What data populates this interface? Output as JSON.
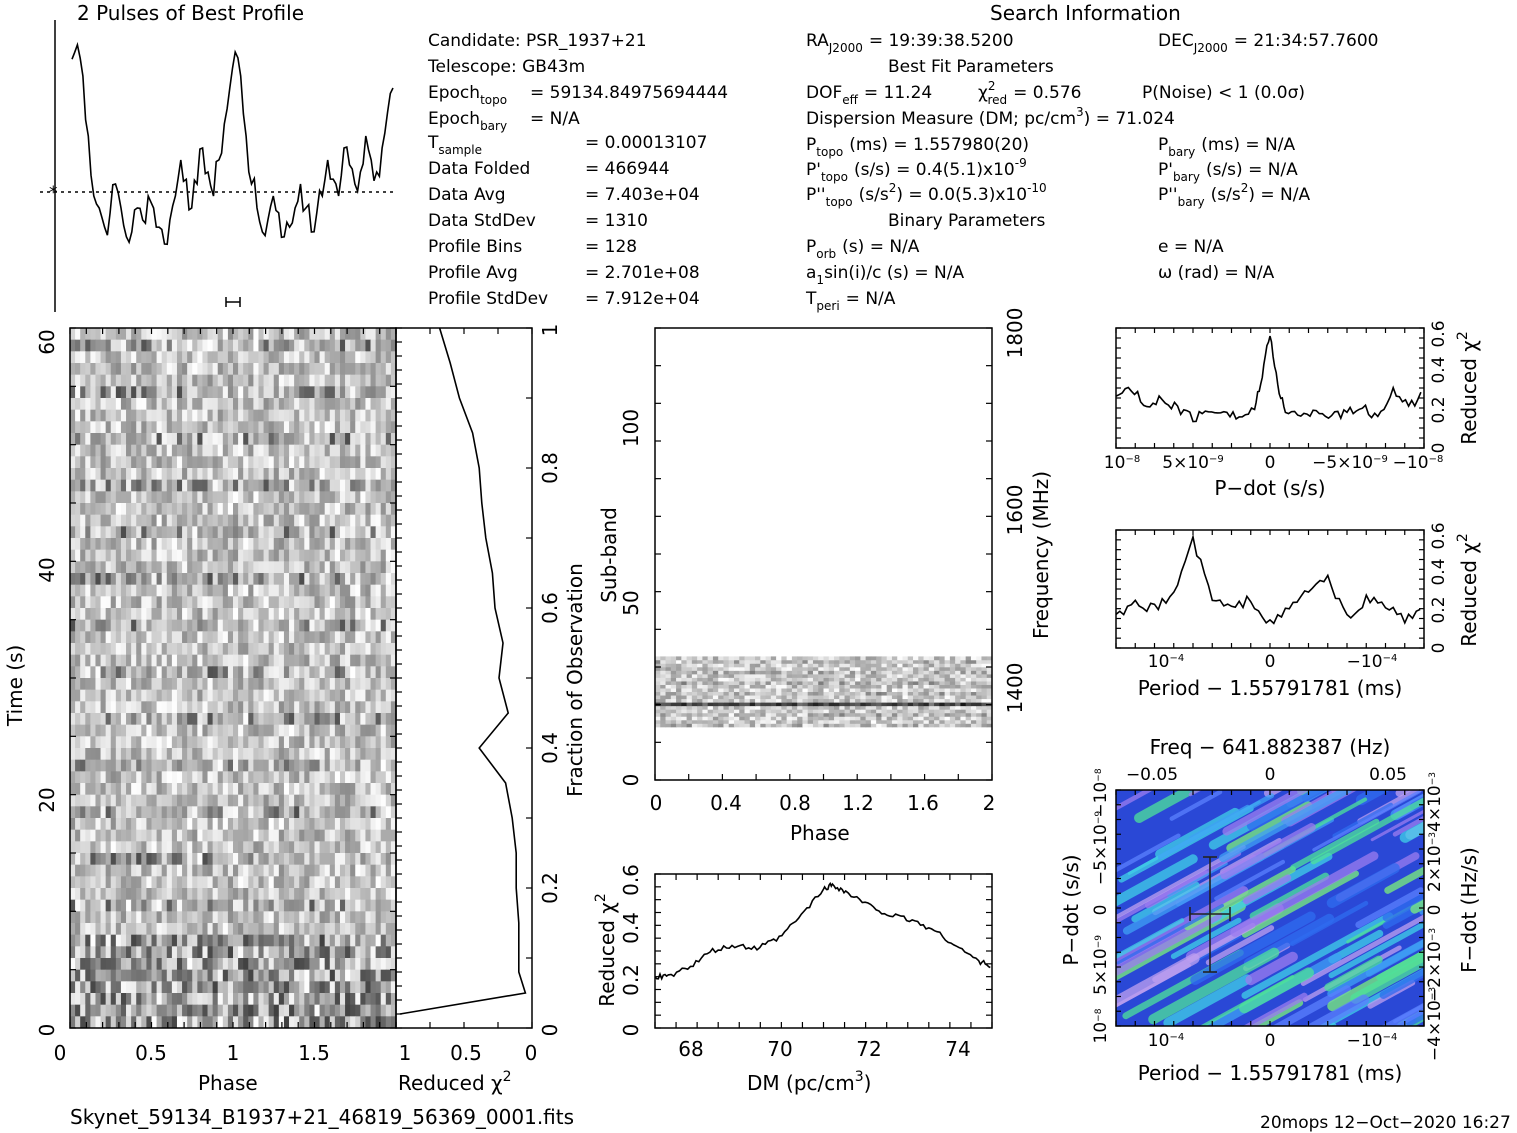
{
  "profile": {
    "title": "2 Pulses of Best Profile"
  },
  "search_info": {
    "heading": "Search Information",
    "candidate": "Candidate:  PSR_1937+21",
    "telescope": "Telescope:  GB43m",
    "epoch_topo": "Epoch",
    "epoch_topo_sub": "topo",
    "epoch_topo_val": "= 59134.84975694444",
    "epoch_bary": "Epoch",
    "epoch_bary_sub": "bary",
    "epoch_bary_val": "= N/A",
    "tsample": "T",
    "tsample_sub": "sample",
    "tsample_val": "=   0.00013107",
    "data_folded": "Data Folded",
    "data_folded_val": "=   466944",
    "data_avg": "Data Avg",
    "data_avg_val": "=   7.403e+04",
    "data_std": "Data StdDev",
    "data_std_val": "=   1310",
    "profile_bins": "Profile Bins",
    "profile_bins_val": "=   128",
    "profile_avg": "Profile Avg",
    "profile_avg_val": "=   2.701e+08",
    "profile_std": "Profile StdDev",
    "profile_std_val": "=   7.912e+04",
    "ra": "RA",
    "ra_sub": "J2000",
    "ra_val": "= 19:39:38.5200",
    "dec": "DEC",
    "dec_sub": "J2000",
    "dec_val": "= 21:34:57.7600",
    "best_fit_heading": "Best Fit Parameters",
    "dof": "DOF",
    "dof_sub": "eff",
    "dof_val": "= 11.24",
    "chi2": "χ",
    "chi2_sup": "2",
    "chi2_sub": "red",
    "chi2_val": "= 0.576",
    "pnoise": "P(Noise) < 1   (0.0σ)",
    "dm": "Dispersion Measure (DM; pc/cm",
    "dm_sup": "3",
    "dm_val": ") = 71.024",
    "ptopo": "P",
    "ptopo_sub": "topo",
    "ptopo_val": "(ms) =  1.557980(20)",
    "pdtopo": "P'",
    "pdtopo_sub": "topo",
    "pdtopo_val": "(s/s) =  0.4(5.1)x10",
    "pdtopo_exp": "-9",
    "pddtopo": "P''",
    "pddtopo_sub": "topo",
    "pddtopo_val": "(s/s",
    "pddtopo_sup": "2",
    "pddtopo_val2": ") = 0.0(5.3)x10",
    "pddtopo_exp": "-10",
    "pbary": "P",
    "pbary_sub": "bary",
    "pbary_val": "(ms) = N/A",
    "pdbary": "P'",
    "pdbary_sub": "bary",
    "pdbary_val": "(s/s) = N/A",
    "pddbary": "P''",
    "pddbary_sub": "bary",
    "pddbary_val": "(s/s",
    "pddbary_sup": "2",
    "pddbary_val2": ") = N/A",
    "binary_heading": "Binary Parameters",
    "porb": "P",
    "porb_sub": "orb",
    "porb_val": "(s) = N/A",
    "a1": "a",
    "a1_sub": "1",
    "a1_val": "sin(i)/c (s) = N/A",
    "tperi": "T",
    "tperi_sub": "peri",
    "tperi_val": "= N/A",
    "ecc": "e = N/A",
    "omega": "ω (rad) = N/A"
  },
  "time_phase": {
    "ylabel": "Time (s)",
    "xlabel": "Phase",
    "yticks": [
      "0",
      "20",
      "40",
      "60"
    ],
    "xticks": [
      "0",
      "0.5",
      "1",
      "1.5"
    ]
  },
  "chi_vs_time": {
    "xlabel": "Reduced χ",
    "xlabel_sup": "2",
    "xticks": [
      "1",
      "0.5",
      "0"
    ],
    "ylabel": "Fraction of Observation",
    "yticks": [
      "0",
      "0.2",
      "0.4",
      "0.6",
      "0.8",
      "1"
    ]
  },
  "subband": {
    "ylabel": "Sub-band",
    "xlabel": "Phase",
    "yticks": [
      "0",
      "50",
      "100"
    ],
    "xticks": [
      "0",
      "0.4",
      "0.8",
      "1.2",
      "1.6",
      "2"
    ],
    "y2label": "Frequency (MHz)",
    "y2ticks": [
      "1400",
      "1600",
      "1800"
    ]
  },
  "dm_plot": {
    "ylabel": "Reduced χ",
    "ylabel_sup": "2",
    "xlabel": "DM (pc/cm",
    "xlabel_sup": "3",
    "xlabel_end": ")",
    "xticks": [
      "68",
      "70",
      "72",
      "74"
    ],
    "yticks": [
      "0",
      "0.2",
      "0.4",
      "0.6"
    ]
  },
  "pdot_plot": {
    "xlabel": "P−dot (s/s)",
    "ylabel": "Reduced χ",
    "ylabel_sup": "2",
    "xticks": [
      "10",
      "5×10",
      "0",
      "−5×10",
      "−10"
    ],
    "xticks_exp": [
      "−8",
      "−9",
      "",
      "−9",
      "−8"
    ],
    "yticks": [
      "0",
      "0.2",
      "0.4",
      "0.6"
    ]
  },
  "period_plot": {
    "xlabel": "Period − 1.55791781 (ms)",
    "ylabel": "Reduced χ",
    "ylabel_sup": "2",
    "xticks": [
      "10",
      "0",
      "−10"
    ],
    "xticks_exp": [
      "−4",
      "",
      "−4"
    ],
    "yticks": [
      "0",
      "0.2",
      "0.4",
      "0.6"
    ]
  },
  "ppdot_plot": {
    "top_label": "Freq − 641.882387 (Hz)",
    "top_ticks": [
      "−0.05",
      "0",
      "0.05"
    ],
    "xlabel": "Period − 1.55791781 (ms)",
    "xticks": [
      "10",
      "0",
      "−10"
    ],
    "xticks_exp": [
      "−4",
      "",
      "−4"
    ],
    "ylabel": "P−dot (s/s)",
    "yticks": [
      "10",
      "5×10",
      "0",
      "−5×10",
      "−10"
    ],
    "yticks_exp": [
      "−8",
      "−9",
      "",
      "−9",
      "−8"
    ],
    "y2label": "F−dot (Hz/s)",
    "y2ticks": [
      "−4×10",
      "−2×10",
      "0",
      "2×10",
      "4×10"
    ],
    "y2ticks_exp": [
      "−3",
      "−3",
      "",
      "−3",
      "−3"
    ]
  },
  "footer": {
    "filename": "Skynet_59134_B1937+21_46819_56369_0001.fits",
    "stamp": "20mops 12−Oct−2020 16:27"
  },
  "chart_data": [
    {
      "type": "line",
      "name": "profile",
      "x_label": "Phase",
      "xlim": [
        0,
        2
      ],
      "values": [
        0.92,
        0.98,
        0.85,
        0.6,
        0.35,
        0.3,
        0.22,
        0.28,
        0.4,
        0.3,
        0.18,
        0.2,
        0.3,
        0.25,
        0.35,
        0.3,
        0.22,
        0.15,
        0.25,
        0.35,
        0.5,
        0.42,
        0.3,
        0.4,
        0.55,
        0.45,
        0.35,
        0.5,
        0.65,
        0.8,
        0.95,
        0.85,
        0.6,
        0.4,
        0.3,
        0.2,
        0.25,
        0.35,
        0.28,
        0.18,
        0.22,
        0.3,
        0.4,
        0.3,
        0.2,
        0.28,
        0.35,
        0.5,
        0.42,
        0.35,
        0.55,
        0.48,
        0.4,
        0.45,
        0.6,
        0.5,
        0.45,
        0.55,
        0.7,
        0.8
      ],
      "mean": 0.42
    },
    {
      "type": "heatmap",
      "name": "time-phase",
      "xlim": [
        0,
        2
      ],
      "ylim": [
        0,
        60
      ]
    },
    {
      "type": "line",
      "name": "chi2 vs time",
      "x": [
        0.02,
        0.05,
        0.08,
        0.1,
        0.15,
        0.2,
        0.25,
        0.3,
        0.35,
        0.4,
        0.45,
        0.5,
        0.55,
        0.6,
        0.65,
        0.7,
        0.75,
        0.8,
        0.85,
        0.9,
        0.95,
        1.0
      ],
      "y": [
        1.0,
        0.05,
        0.1,
        0.1,
        0.1,
        0.12,
        0.12,
        0.15,
        0.2,
        0.4,
        0.18,
        0.25,
        0.22,
        0.28,
        0.3,
        0.35,
        0.38,
        0.4,
        0.45,
        0.55,
        0.62,
        0.7
      ],
      "xlim": [
        1,
        0
      ],
      "ylim": [
        0,
        1
      ]
    },
    {
      "type": "heatmap",
      "name": "sub-band",
      "xlim": [
        0,
        2
      ],
      "ylim": [
        0,
        128
      ],
      "band_range": [
        15,
        35
      ]
    },
    {
      "type": "line",
      "name": "DM curve",
      "x": [
        67.2,
        67.5,
        68.0,
        68.5,
        69.0,
        69.5,
        70.0,
        70.5,
        71.0,
        71.2,
        71.5,
        72.0,
        72.5,
        73.0,
        73.5,
        74.0,
        74.5,
        74.8
      ],
      "y": [
        0.2,
        0.2,
        0.24,
        0.3,
        0.32,
        0.31,
        0.35,
        0.44,
        0.54,
        0.56,
        0.53,
        0.48,
        0.44,
        0.42,
        0.38,
        0.32,
        0.26,
        0.24
      ],
      "xlim": [
        67.2,
        74.8
      ],
      "ylim": [
        0,
        0.6
      ]
    },
    {
      "type": "line",
      "name": "P-dot curve",
      "x": [
        1.0,
        0.9,
        0.8,
        0.7,
        0.6,
        0.5,
        0.4,
        0.3,
        0.2,
        0.1,
        0.05,
        0.0,
        -0.05,
        -0.1,
        -0.2,
        -0.3,
        -0.4,
        -0.5,
        -0.6,
        -0.7,
        -0.8,
        -0.9,
        -1.0
      ],
      "y": [
        0.25,
        0.3,
        0.2,
        0.25,
        0.2,
        0.15,
        0.18,
        0.2,
        0.15,
        0.2,
        0.35,
        0.58,
        0.3,
        0.2,
        0.15,
        0.2,
        0.15,
        0.18,
        0.2,
        0.15,
        0.3,
        0.2,
        0.28
      ],
      "xlim": [
        1,
        -1
      ],
      "ylim": [
        0,
        0.6
      ]
    },
    {
      "type": "line",
      "name": "Period curve",
      "x": [
        1.6,
        1.4,
        1.2,
        1.0,
        0.8,
        0.6,
        0.4,
        0.2,
        0.0,
        -0.2,
        -0.4,
        -0.6,
        -0.8,
        -1.0,
        -1.2,
        -1.4,
        -1.6
      ],
      "y": [
        0.15,
        0.22,
        0.2,
        0.28,
        0.55,
        0.25,
        0.2,
        0.25,
        0.12,
        0.2,
        0.3,
        0.35,
        0.15,
        0.25,
        0.22,
        0.15,
        0.18
      ],
      "xlim": [
        1.6,
        -1.6
      ],
      "ylim": [
        0,
        0.6
      ]
    },
    {
      "type": "heatmap",
      "name": "P-Pdot",
      "xlim": [
        1.6,
        -1.6
      ],
      "ylim": [
        1,
        -1
      ],
      "best": {
        "x": 0.6,
        "y": 0.0
      }
    }
  ]
}
